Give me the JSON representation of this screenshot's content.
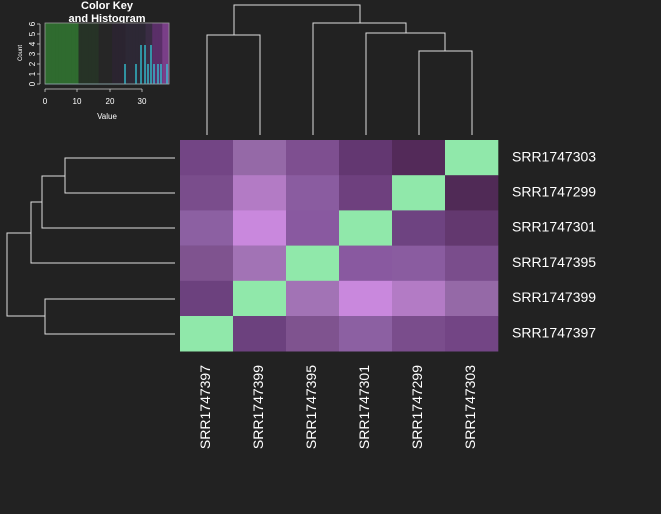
{
  "color_key": {
    "title_line1": "Color Key",
    "title_line2": "and Histogram",
    "ylabel": "Count",
    "xlabel": "Value",
    "x_ticks": [
      "0",
      "10",
      "20",
      "30"
    ],
    "y_ticks": [
      "0",
      "1",
      "2",
      "3",
      "4",
      "5",
      "6"
    ],
    "histogram_color": "#33ccdd",
    "key_colors": [
      "#2f6b2f",
      "#2f6b2f",
      "#2f6b2f",
      "#2f6b2f",
      "#2f6b2f",
      "#2f6b2f",
      "#2f6b2f",
      "#2f6b2f",
      "#2f6b2f",
      "#2f6b2f",
      "#263326",
      "#263326",
      "#263326",
      "#263326",
      "#263326",
      "#263326",
      "#262626",
      "#262626",
      "#262626",
      "#262626",
      "#2b2430",
      "#2b2430",
      "#2b2430",
      "#2b2430",
      "#2d2835",
      "#2d2835",
      "#2d2835",
      "#2d2835",
      "#2d2835",
      "#2d2835",
      "#3a2c44",
      "#3a2c44",
      "#5a2f68",
      "#5a2f68",
      "#5a2f68",
      "#7a3f88",
      "#7a3f88"
    ]
  },
  "chart_data": {
    "type": "heatmap",
    "rows": [
      "SRR1747303",
      "SRR1747299",
      "SRR1747301",
      "SRR1747395",
      "SRR1747399",
      "SRR1747397"
    ],
    "columns": [
      "SRR1747397",
      "SRR1747399",
      "SRR1747395",
      "SRR1747301",
      "SRR1747299",
      "SRR1747303"
    ],
    "cell_colors": [
      [
        "#734585",
        "#9569a7",
        "#7e4f90",
        "#633771",
        "#532a59",
        "#90e8aa"
      ],
      [
        "#7a4d8c",
        "#b37bc5",
        "#8a5ca0",
        "#6e407e",
        "#90e8aa",
        "#502a56"
      ],
      [
        "#8c60a2",
        "#c988dd",
        "#8959a0",
        "#90e8aa",
        "#6e4381",
        "#63386f"
      ],
      [
        "#7f538f",
        "#a273b5",
        "#90e8aa",
        "#8959a0",
        "#8a5ca0",
        "#7a4d8c"
      ],
      [
        "#6c417e",
        "#90e8aa",
        "#a273b5",
        "#c988dd",
        "#b37bc5",
        "#9569a7"
      ],
      [
        "#90e8aa",
        "#6c417e",
        "#7f538f",
        "#8c60a2",
        "#7a4d8c",
        "#734585"
      ]
    ],
    "diagonal_color": "#90e8aa",
    "colors": {
      "background": "#222222",
      "text": "#ffffff",
      "dendrogram": "#dddddd"
    }
  }
}
